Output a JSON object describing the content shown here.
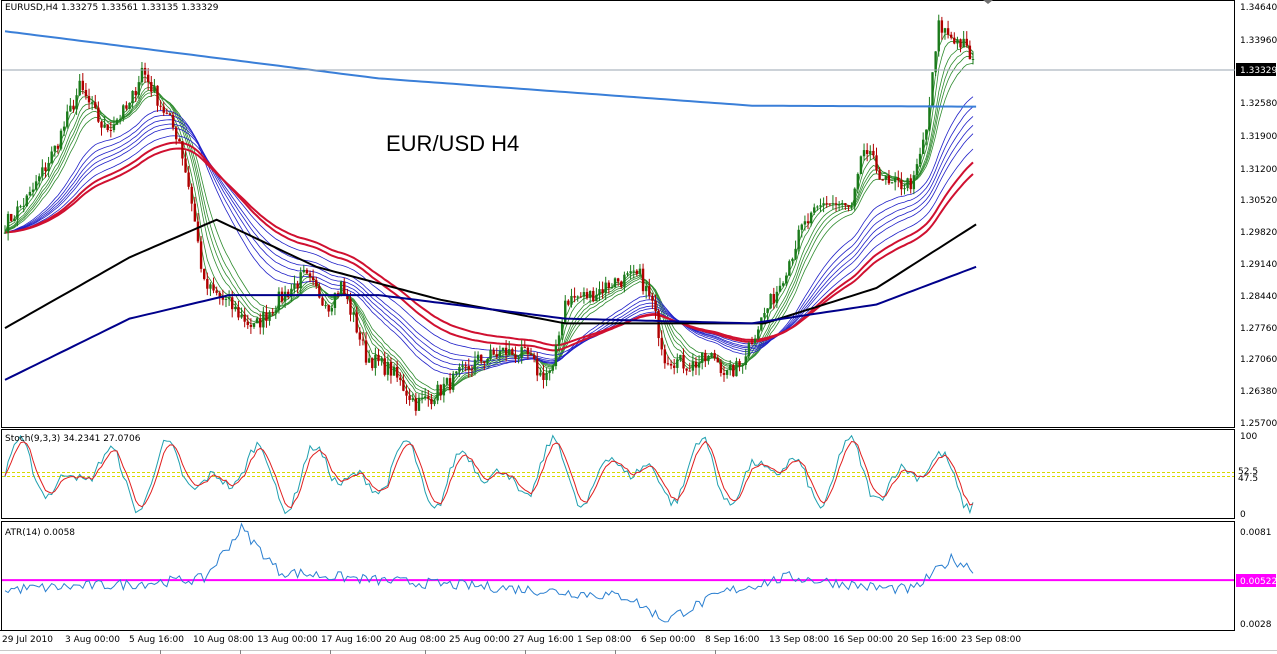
{
  "main_panel": {
    "symbol_header": "EURUSD,H4  1.33275 1.33561 1.33135 1.33329",
    "title": "EUR/USD H4",
    "price_ticks": [
      "1.34640",
      "1.33960",
      "1.33329",
      "1.32580",
      "1.31900",
      "1.31200",
      "1.30520",
      "1.29820",
      "1.29140",
      "1.28440",
      "1.27760",
      "1.27060",
      "1.26380",
      "1.25700"
    ],
    "current_price_label": "1.33329"
  },
  "stoch_panel": {
    "header": "Stoch(9,3,3) 34.2341 27.0706",
    "ticks": [
      "100",
      "52.5",
      "47.5",
      "0"
    ]
  },
  "atr_panel": {
    "header": "ATR(14) 0.0058",
    "ticks": [
      "0.0081",
      "0.0028"
    ],
    "level_label": "0.00522"
  },
  "time_axis": [
    "29 Jul 2010",
    "3 Aug 00:00",
    "5 Aug 16:00",
    "10 Aug 08:00",
    "13 Aug 00:00",
    "17 Aug 16:00",
    "20 Aug 08:00",
    "25 Aug 00:00",
    "27 Aug 16:00",
    "1 Sep 08:00",
    "6 Sep 00:00",
    "8 Sep 16:00",
    "13 Sep 08:00",
    "16 Sep 00:00",
    "20 Sep 16:00",
    "23 Sep 08:00"
  ],
  "chart_data": [
    {
      "type": "candlestick",
      "title": "EUR/USD H4",
      "y_range": [
        1.257,
        1.347
      ],
      "close_path": [
        [
          0,
          1.3
        ],
        [
          2,
          1.306
        ],
        [
          4,
          1.316
        ],
        [
          6,
          1.329
        ],
        [
          8,
          1.32
        ],
        [
          10,
          1.325
        ],
        [
          11,
          1.333
        ],
        [
          12,
          1.328
        ],
        [
          14,
          1.318
        ],
        [
          15,
          1.305
        ],
        [
          16,
          1.287
        ],
        [
          18,
          1.283
        ],
        [
          20,
          1.278
        ],
        [
          22,
          1.284
        ],
        [
          24,
          1.289
        ],
        [
          26,
          1.283
        ],
        [
          27,
          1.287
        ],
        [
          28,
          1.28
        ],
        [
          29,
          1.272
        ],
        [
          31,
          1.269
        ],
        [
          33,
          1.262
        ],
        [
          34,
          1.263
        ],
        [
          36,
          1.267
        ],
        [
          38,
          1.271
        ],
        [
          40,
          1.273
        ],
        [
          42,
          1.272
        ],
        [
          43,
          1.268
        ],
        [
          44,
          1.269
        ],
        [
          45,
          1.284
        ],
        [
          47,
          1.285
        ],
        [
          49,
          1.288
        ],
        [
          51,
          1.289
        ],
        [
          52,
          1.283
        ],
        [
          53,
          1.272
        ],
        [
          55,
          1.27
        ],
        [
          57,
          1.272
        ],
        [
          58,
          1.268
        ],
        [
          59,
          1.27
        ],
        [
          60,
          1.276
        ],
        [
          62,
          1.286
        ],
        [
          64,
          1.299
        ],
        [
          66,
          1.305
        ],
        [
          68,
          1.303
        ],
        [
          69,
          1.316
        ],
        [
          71,
          1.308
        ],
        [
          73,
          1.309
        ],
        [
          74,
          1.32
        ],
        [
          75,
          1.342
        ],
        [
          77,
          1.338
        ],
        [
          78,
          1.3333
        ]
      ],
      "moving_averages": [
        {
          "color": "#3a7fd8",
          "path": [
            [
              0,
              1.341
            ],
            [
              30,
              1.331
            ],
            [
              60,
              1.3252
            ],
            [
              78,
              1.325
            ]
          ]
        },
        {
          "color": "#000000",
          "path": [
            [
              0,
              1.278
            ],
            [
              10,
              1.293
            ],
            [
              17,
              1.301
            ],
            [
              25,
              1.291
            ],
            [
              35,
              1.284
            ],
            [
              45,
              1.279
            ],
            [
              55,
              1.279
            ],
            [
              61,
              1.279
            ],
            [
              70,
              1.2865
            ],
            [
              78,
              1.3
            ]
          ]
        },
        {
          "color": "#00008b",
          "path": [
            [
              0,
              1.267
            ],
            [
              10,
              1.28
            ],
            [
              18,
              1.285
            ],
            [
              30,
              1.285
            ],
            [
              45,
              1.28
            ],
            [
              60,
              1.279
            ],
            [
              70,
              1.283
            ],
            [
              78,
              1.291
            ]
          ]
        }
      ]
    },
    {
      "type": "line",
      "name": "Stoch(9,3,3)",
      "y_range": [
        0,
        100
      ],
      "levels": [
        52.5,
        47.5
      ]
    },
    {
      "type": "line",
      "name": "ATR(14)",
      "y_range": [
        0.0025,
        0.0084
      ],
      "level": 0.00522
    }
  ]
}
